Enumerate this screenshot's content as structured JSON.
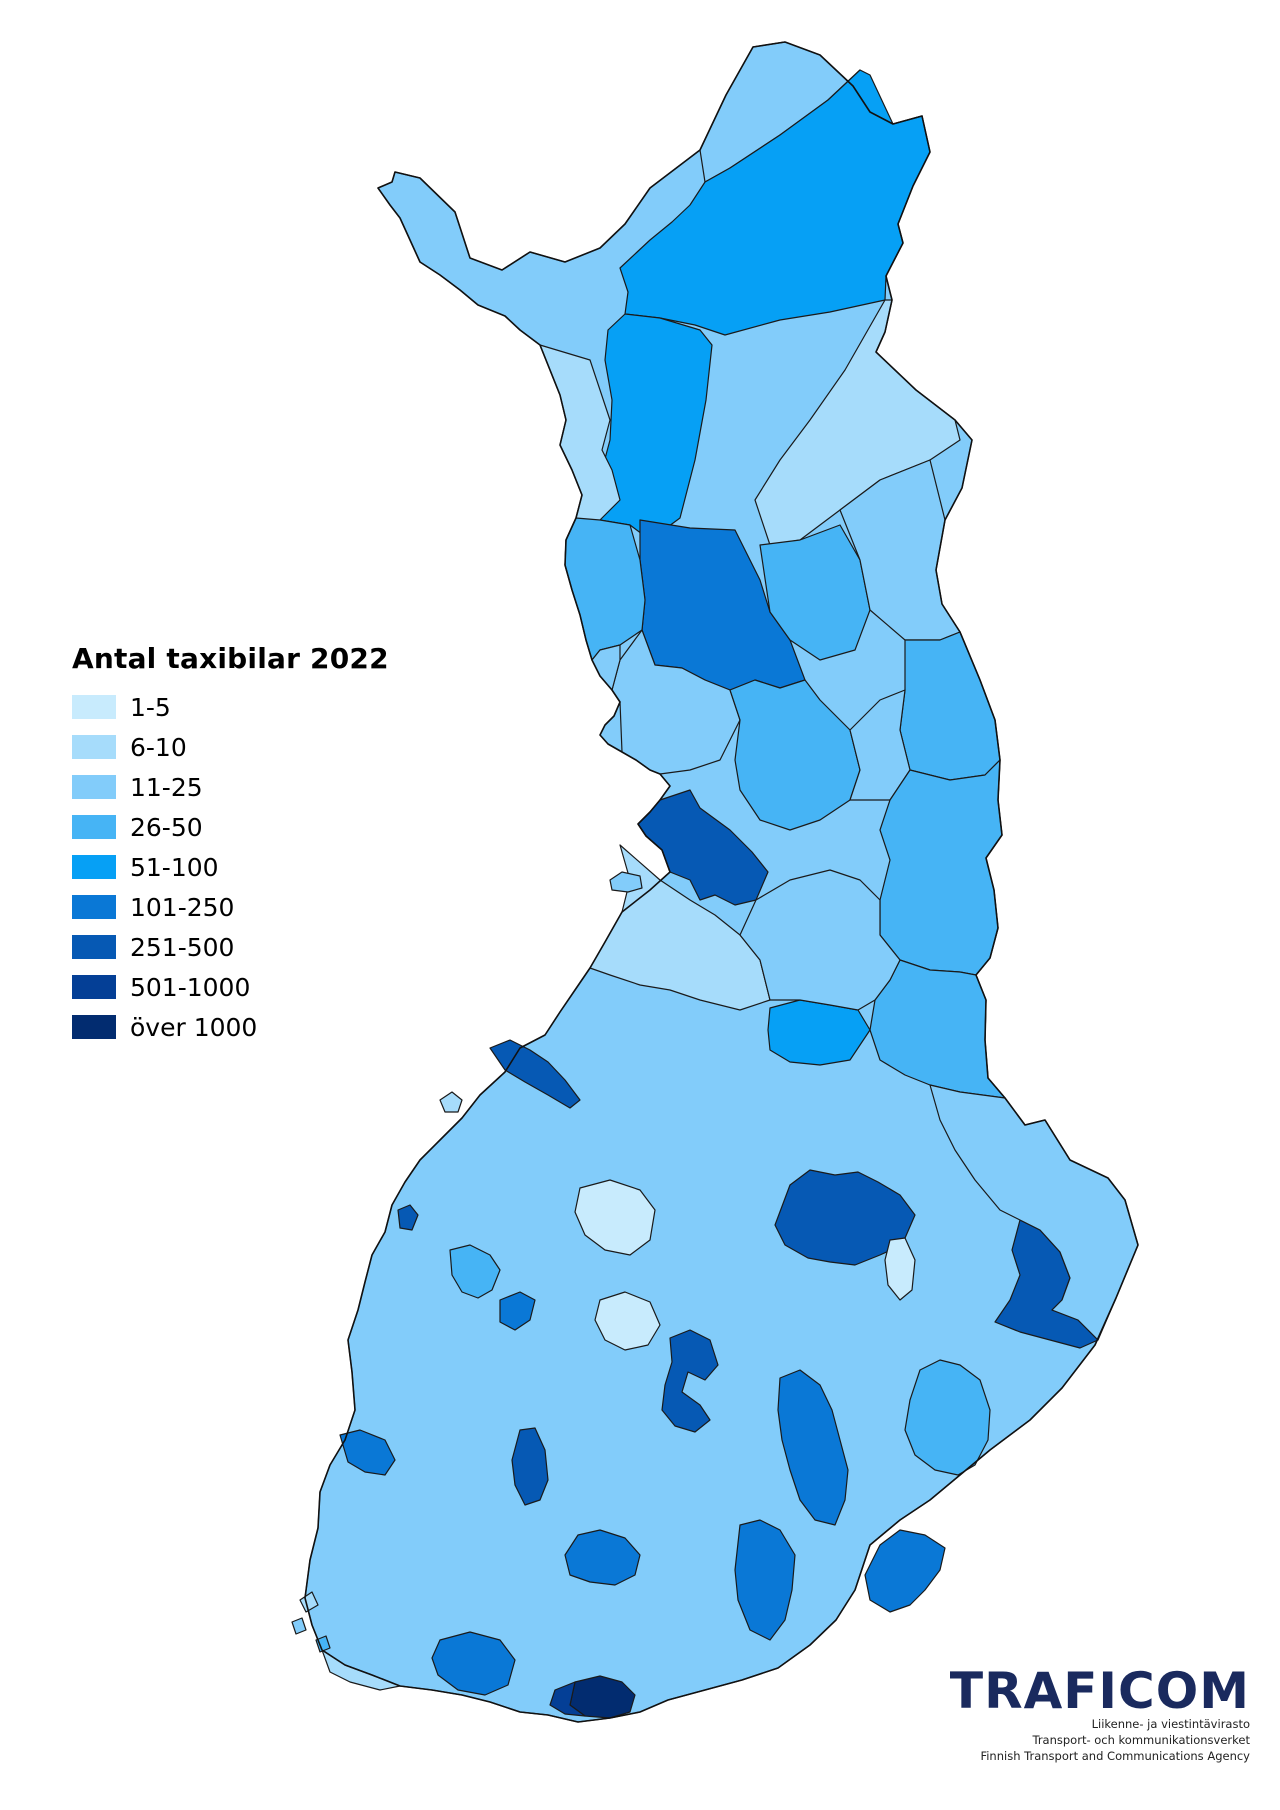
{
  "legend": {
    "title": "Antal taxibilar 2022",
    "classes": [
      {
        "label": "1-5",
        "color": "#c8ebfd"
      },
      {
        "label": "6-10",
        "color": "#a6dcfb"
      },
      {
        "label": "11-25",
        "color": "#82ccfa"
      },
      {
        "label": "26-50",
        "color": "#46b4f5"
      },
      {
        "label": "51-100",
        "color": "#06a0f5"
      },
      {
        "label": "101-250",
        "color": "#0a78d6"
      },
      {
        "label": "251-500",
        "color": "#0659b4"
      },
      {
        "label": "501-1000",
        "color": "#043f96"
      },
      {
        "label": "över 1000",
        "color": "#022c70"
      }
    ]
  },
  "logo": {
    "wordmark": "TRAFICOM",
    "color": "#1a2a5e",
    "line1": "Liikenne- ja viestintävirasto",
    "line2": "Transport- och kommunikationsverket",
    "line3": "Finnish Transport and Communications Agency"
  }
}
